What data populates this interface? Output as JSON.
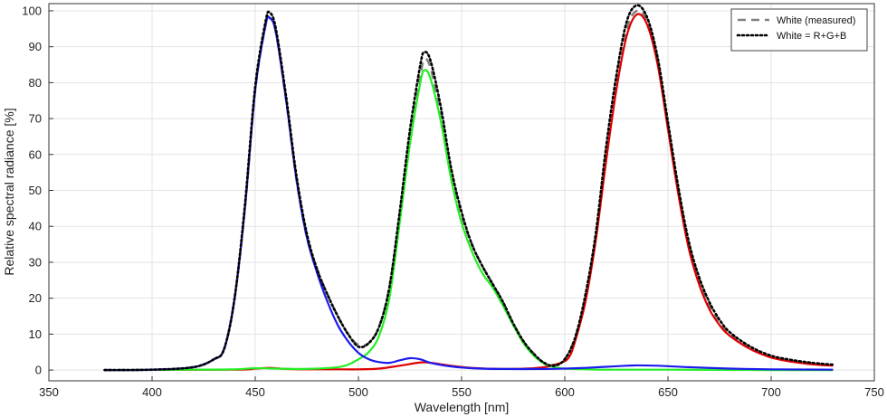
{
  "chart_data": {
    "type": "line",
    "title": "",
    "xlabel": "Wavelength [nm]",
    "ylabel": "Relative spectral radiance [%]",
    "xlim": [
      350,
      750
    ],
    "ylim": [
      -3,
      102
    ],
    "xticks": [
      350,
      400,
      450,
      500,
      550,
      600,
      650,
      700,
      750
    ],
    "yticks": [
      0,
      10,
      20,
      30,
      40,
      50,
      60,
      70,
      80,
      90,
      100
    ],
    "grid": true,
    "legend_position": "top-right",
    "series": [
      {
        "name": "White (measured)",
        "color": "#808080",
        "style": "dashed",
        "in_legend": true,
        "points": [
          [
            377,
            0
          ],
          [
            400,
            0.1
          ],
          [
            420,
            0.8
          ],
          [
            430,
            3
          ],
          [
            435,
            6
          ],
          [
            440,
            20
          ],
          [
            445,
            45
          ],
          [
            450,
            78
          ],
          [
            455,
            96
          ],
          [
            457,
            98
          ],
          [
            460,
            94
          ],
          [
            465,
            75
          ],
          [
            470,
            53
          ],
          [
            475,
            37
          ],
          [
            480,
            28
          ],
          [
            485,
            21
          ],
          [
            490,
            15
          ],
          [
            495,
            10
          ],
          [
            500,
            7
          ],
          [
            505,
            7.5
          ],
          [
            510,
            12
          ],
          [
            515,
            23
          ],
          [
            520,
            43
          ],
          [
            525,
            65
          ],
          [
            530,
            82
          ],
          [
            532,
            86.5
          ],
          [
            535,
            84
          ],
          [
            540,
            71
          ],
          [
            545,
            55
          ],
          [
            550,
            43
          ],
          [
            555,
            35
          ],
          [
            560,
            29
          ],
          [
            565,
            24
          ],
          [
            570,
            19
          ],
          [
            575,
            13
          ],
          [
            580,
            8
          ],
          [
            585,
            4.5
          ],
          [
            590,
            2
          ],
          [
            595,
            1.5
          ],
          [
            600,
            3
          ],
          [
            605,
            9
          ],
          [
            610,
            20
          ],
          [
            615,
            37
          ],
          [
            620,
            60
          ],
          [
            625,
            80
          ],
          [
            630,
            95
          ],
          [
            635,
            100
          ],
          [
            640,
            97
          ],
          [
            645,
            86
          ],
          [
            650,
            68
          ],
          [
            655,
            50
          ],
          [
            660,
            35
          ],
          [
            665,
            25
          ],
          [
            670,
            18
          ],
          [
            675,
            13
          ],
          [
            680,
            10
          ],
          [
            690,
            6
          ],
          [
            700,
            3.5
          ],
          [
            710,
            2.5
          ],
          [
            720,
            1.8
          ],
          [
            730,
            1.3
          ]
        ]
      },
      {
        "name": "White = R+G+B",
        "color": "#000000",
        "style": "dotted",
        "in_legend": true,
        "points": [
          [
            377,
            0
          ],
          [
            400,
            0.1
          ],
          [
            420,
            0.8
          ],
          [
            430,
            3
          ],
          [
            435,
            6
          ],
          [
            440,
            20
          ],
          [
            445,
            46
          ],
          [
            450,
            79
          ],
          [
            455,
            97
          ],
          [
            457,
            99.5
          ],
          [
            460,
            95
          ],
          [
            465,
            76
          ],
          [
            470,
            54
          ],
          [
            475,
            38
          ],
          [
            480,
            28
          ],
          [
            485,
            21
          ],
          [
            490,
            15
          ],
          [
            495,
            10
          ],
          [
            500,
            6.5
          ],
          [
            505,
            7.5
          ],
          [
            510,
            12
          ],
          [
            515,
            23
          ],
          [
            520,
            44
          ],
          [
            525,
            67
          ],
          [
            530,
            85
          ],
          [
            532,
            88.5
          ],
          [
            535,
            86
          ],
          [
            540,
            73
          ],
          [
            545,
            56
          ],
          [
            550,
            44
          ],
          [
            555,
            35
          ],
          [
            560,
            29
          ],
          [
            565,
            24
          ],
          [
            570,
            19
          ],
          [
            575,
            13
          ],
          [
            580,
            8
          ],
          [
            585,
            4.5
          ],
          [
            590,
            2
          ],
          [
            595,
            1.2
          ],
          [
            600,
            3
          ],
          [
            605,
            9
          ],
          [
            610,
            21
          ],
          [
            615,
            38
          ],
          [
            620,
            62
          ],
          [
            625,
            82
          ],
          [
            630,
            97
          ],
          [
            635,
            101.5
          ],
          [
            640,
            98
          ],
          [
            645,
            87
          ],
          [
            650,
            69
          ],
          [
            655,
            51
          ],
          [
            660,
            36
          ],
          [
            665,
            26
          ],
          [
            670,
            19
          ],
          [
            675,
            14
          ],
          [
            680,
            10.5
          ],
          [
            690,
            6.5
          ],
          [
            700,
            4
          ],
          [
            710,
            2.8
          ],
          [
            720,
            2
          ],
          [
            730,
            1.5
          ]
        ]
      },
      {
        "name": "",
        "color": "#e00000",
        "style": "solid",
        "in_legend": false,
        "points": [
          [
            377,
            0
          ],
          [
            440,
            0.1
          ],
          [
            450,
            0.4
          ],
          [
            457,
            0.6
          ],
          [
            465,
            0.3
          ],
          [
            475,
            0.2
          ],
          [
            490,
            0.2
          ],
          [
            500,
            0.2
          ],
          [
            510,
            0.4
          ],
          [
            520,
            1.2
          ],
          [
            530,
            2.1
          ],
          [
            535,
            2
          ],
          [
            545,
            1.2
          ],
          [
            555,
            0.6
          ],
          [
            570,
            0.3
          ],
          [
            585,
            0.5
          ],
          [
            592,
            1
          ],
          [
            598,
            2
          ],
          [
            602,
            3.5
          ],
          [
            605,
            8
          ],
          [
            610,
            19
          ],
          [
            615,
            36
          ],
          [
            620,
            58
          ],
          [
            625,
            78
          ],
          [
            630,
            93
          ],
          [
            635,
            99
          ],
          [
            640,
            96
          ],
          [
            645,
            85
          ],
          [
            650,
            67
          ],
          [
            655,
            49
          ],
          [
            660,
            34
          ],
          [
            665,
            24
          ],
          [
            670,
            17
          ],
          [
            675,
            12.5
          ],
          [
            680,
            9.5
          ],
          [
            690,
            5.8
          ],
          [
            700,
            3.5
          ],
          [
            710,
            2.3
          ],
          [
            720,
            1.6
          ],
          [
            730,
            1.2
          ]
        ]
      },
      {
        "name": "",
        "color": "#22ee22",
        "style": "solid",
        "in_legend": false,
        "points": [
          [
            377,
            0
          ],
          [
            420,
            0.1
          ],
          [
            440,
            0.2
          ],
          [
            450,
            0.5
          ],
          [
            460,
            0.4
          ],
          [
            470,
            0.3
          ],
          [
            480,
            0.4
          ],
          [
            490,
            0.8
          ],
          [
            495,
            1.5
          ],
          [
            500,
            3
          ],
          [
            505,
            5
          ],
          [
            510,
            9.5
          ],
          [
            515,
            20
          ],
          [
            520,
            41
          ],
          [
            525,
            63
          ],
          [
            530,
            80
          ],
          [
            532,
            83.5
          ],
          [
            535,
            81
          ],
          [
            540,
            69
          ],
          [
            545,
            53
          ],
          [
            550,
            41
          ],
          [
            555,
            33
          ],
          [
            560,
            27
          ],
          [
            565,
            23
          ],
          [
            570,
            18
          ],
          [
            575,
            12.5
          ],
          [
            580,
            7.5
          ],
          [
            585,
            4
          ],
          [
            590,
            1.8
          ],
          [
            595,
            0.8
          ],
          [
            600,
            0.4
          ],
          [
            610,
            0.2
          ],
          [
            620,
            0.1
          ],
          [
            650,
            0.1
          ],
          [
            700,
            0
          ],
          [
            730,
            0
          ]
        ]
      },
      {
        "name": "",
        "color": "#1a1aee",
        "style": "solid",
        "in_legend": false,
        "points": [
          [
            377,
            0
          ],
          [
            400,
            0.1
          ],
          [
            420,
            0.8
          ],
          [
            430,
            3
          ],
          [
            435,
            6
          ],
          [
            440,
            20
          ],
          [
            445,
            45
          ],
          [
            450,
            78
          ],
          [
            455,
            96
          ],
          [
            457,
            98
          ],
          [
            460,
            94
          ],
          [
            465,
            75
          ],
          [
            470,
            53
          ],
          [
            475,
            37
          ],
          [
            480,
            27
          ],
          [
            485,
            19
          ],
          [
            490,
            12.5
          ],
          [
            495,
            8
          ],
          [
            500,
            4.8
          ],
          [
            505,
            3
          ],
          [
            510,
            2.2
          ],
          [
            515,
            2
          ],
          [
            520,
            2.7
          ],
          [
            525,
            3.3
          ],
          [
            530,
            3
          ],
          [
            535,
            2
          ],
          [
            545,
            1
          ],
          [
            555,
            0.5
          ],
          [
            570,
            0.3
          ],
          [
            590,
            0.3
          ],
          [
            600,
            0.4
          ],
          [
            610,
            0.6
          ],
          [
            620,
            0.9
          ],
          [
            630,
            1.2
          ],
          [
            635,
            1.3
          ],
          [
            645,
            1.2
          ],
          [
            660,
            0.8
          ],
          [
            680,
            0.4
          ],
          [
            700,
            0.2
          ],
          [
            730,
            0.1
          ]
        ]
      }
    ]
  }
}
